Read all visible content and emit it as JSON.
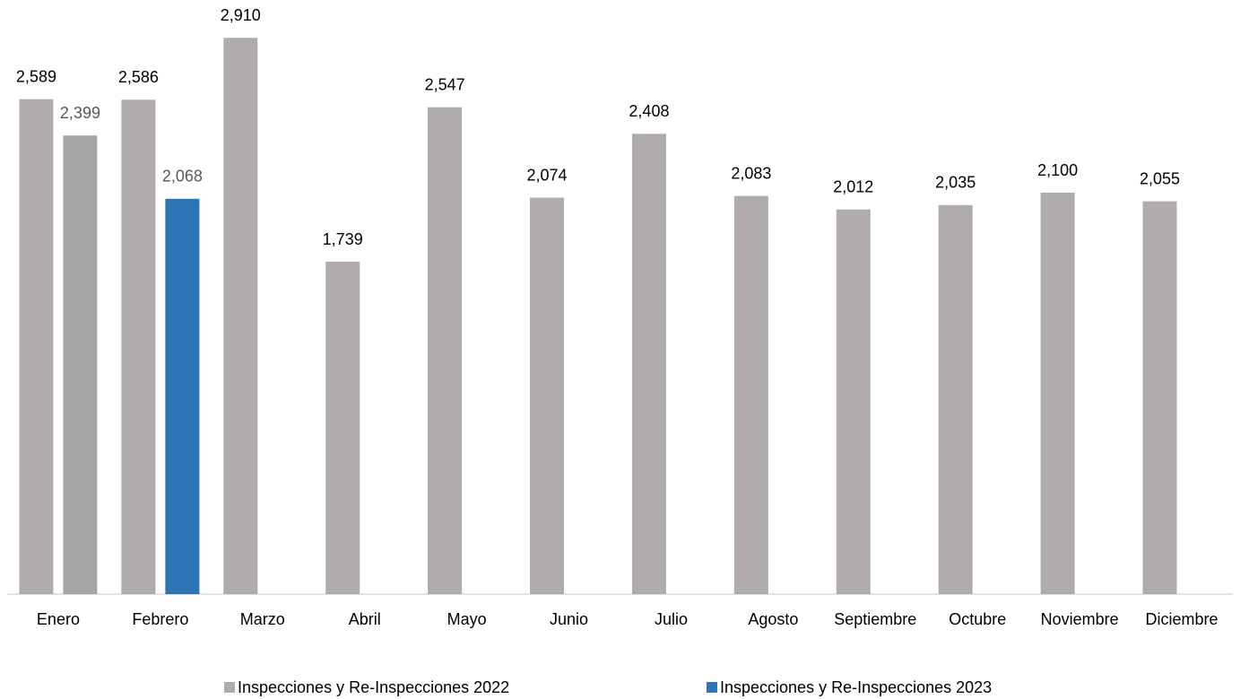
{
  "chart_data": {
    "type": "bar",
    "categories": [
      "Enero",
      "Febrero",
      "Marzo",
      "Abril",
      "Mayo",
      "Junio",
      "Julio",
      "Agosto",
      "Septiembre",
      "Octubre",
      "Noviembre",
      "Diciembre"
    ],
    "series": [
      {
        "name": "Inspecciones y Re-Inspecciones 2022",
        "color": "#b0acab",
        "values": [
          2589,
          2586,
          2910,
          1739,
          2547,
          2074,
          2408,
          2083,
          2012,
          2035,
          2100,
          2055
        ],
        "value_labels": [
          "2,589",
          "2,586",
          "2,910",
          "1,739",
          "2,547",
          "2,074",
          "2,408",
          "2,083",
          "2,012",
          "2,035",
          "2,100",
          "2,055"
        ],
        "label_color": "#000000"
      },
      {
        "name": "Inspecciones y Re-Inspecciones 2023",
        "color": "#2e75b6",
        "point_colors": [
          "#a5a5a5",
          "#2e75b6",
          null,
          null,
          null,
          null,
          null,
          null,
          null,
          null,
          null,
          null
        ],
        "values": [
          2399,
          2068,
          null,
          null,
          null,
          null,
          null,
          null,
          null,
          null,
          null,
          null
        ],
        "value_labels": [
          "2,399",
          "2,068",
          null,
          null,
          null,
          null,
          null,
          null,
          null,
          null,
          null,
          null
        ],
        "label_color": "#595959"
      }
    ],
    "ylim": [
      0,
      3000
    ],
    "legend": "bottom",
    "grid": false
  }
}
